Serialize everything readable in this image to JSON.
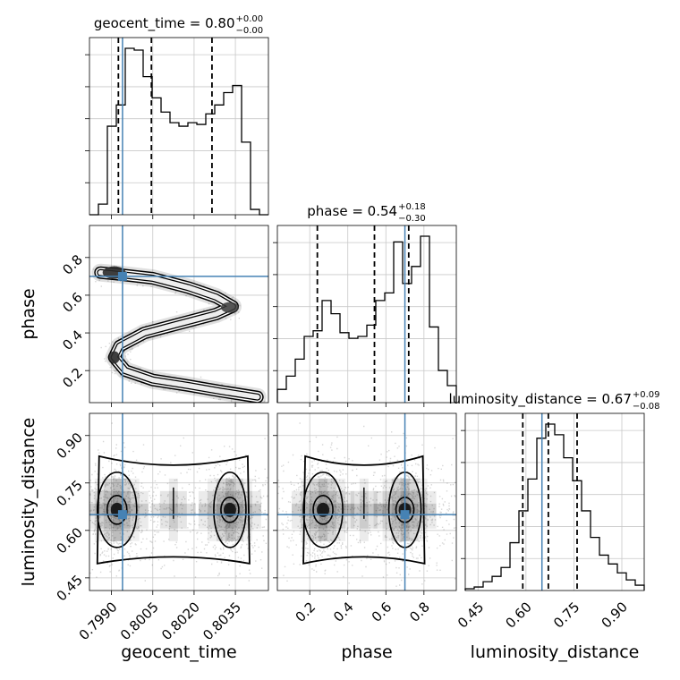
{
  "chart_data": {
    "type": "corner",
    "parameters": [
      {
        "name": "geocent_time",
        "axis_label": "geocent_time",
        "range": [
          0.7982,
          0.8047
        ],
        "ticks": [
          0.799,
          0.8005,
          0.802,
          0.8035
        ],
        "tick_labels": [
          "0.7990",
          "0.8005",
          "0.8020",
          "0.8035"
        ],
        "title_main": "geocent_time = 0.80",
        "title_sup": "+0.00",
        "title_sub": "−0.00",
        "injected": 0.7994,
        "quantiles": [
          0.79925,
          0.80045,
          0.80265
        ],
        "hist_edges_start": 0.7982,
        "hist_bin_width": 0.000325,
        "hist_counts": [
          0,
          0.06,
          0.5,
          0.62,
          0.94,
          0.93,
          0.78,
          0.66,
          0.58,
          0.52,
          0.5,
          0.52,
          0.51,
          0.57,
          0.62,
          0.69,
          0.73,
          0.41,
          0.03,
          0
        ]
      },
      {
        "name": "phase",
        "axis_label": "phase",
        "range": [
          0.03,
          0.97
        ],
        "ticks": [
          0.2,
          0.4,
          0.6,
          0.8
        ],
        "tick_labels": [
          "0.2",
          "0.4",
          "0.6",
          "0.8"
        ],
        "title_main": "phase = 0.54",
        "title_sup": "+0.18",
        "title_sub": "−0.30",
        "injected": 0.7,
        "quantiles": [
          0.24,
          0.54,
          0.72
        ],
        "hist_edges_start": 0.03,
        "hist_bin_width": 0.047,
        "hist_counts": [
          0.07,
          0.14,
          0.23,
          0.35,
          0.38,
          0.54,
          0.47,
          0.37,
          0.34,
          0.35,
          0.41,
          0.54,
          0.58,
          0.85,
          0.63,
          0.72,
          0.88,
          0.4,
          0.17,
          0.09
        ]
      },
      {
        "name": "luminosity_distance",
        "axis_label": "luminosity_distance",
        "range": [
          0.41,
          0.97
        ],
        "ticks": [
          0.45,
          0.6,
          0.75,
          0.9
        ],
        "tick_labels": [
          "0.45",
          "0.60",
          "0.75",
          "0.90"
        ],
        "title_main": "luminosity_distance = 0.67",
        "title_sup": "+0.09",
        "title_sub": "−0.08",
        "injected": 0.65,
        "quantiles": [
          0.59,
          0.67,
          0.76
        ],
        "hist_edges_start": 0.41,
        "hist_bin_width": 0.028,
        "hist_counts": [
          0.01,
          0.02,
          0.05,
          0.08,
          0.13,
          0.27,
          0.45,
          0.63,
          0.86,
          0.94,
          0.88,
          0.75,
          0.62,
          0.45,
          0.3,
          0.2,
          0.15,
          0.1,
          0.06,
          0.03
        ]
      }
    ],
    "injection_color": "#4682b4",
    "hist_color": "#000000",
    "quantile_line_style": "dashed",
    "grid": true,
    "panels_2d": [
      {
        "x": "geocent_time",
        "y": "phase",
        "samples": "S-shaped band: dense blobs at (0.7991, 0.72), (0.8033, 0.54), (0.7991, 0.27); tail towards (0.8043, 0.07)",
        "path_x": [
          0.7986,
          0.7993,
          0.8005,
          0.8018,
          0.8028,
          0.8034,
          0.8028,
          0.8015,
          0.8002,
          0.7993,
          0.7991,
          0.7995,
          0.8005,
          0.8018,
          0.803,
          0.8043
        ],
        "path_y": [
          0.72,
          0.71,
          0.69,
          0.64,
          0.59,
          0.54,
          0.5,
          0.45,
          0.4,
          0.33,
          0.27,
          0.2,
          0.15,
          0.12,
          0.09,
          0.06
        ]
      },
      {
        "x": "geocent_time",
        "y": "luminosity_distance",
        "samples": "bimodal in geocent_time, modes near 0.7992 and 0.8033, luminosity_distance centred near 0.66"
      },
      {
        "x": "phase",
        "y": "luminosity_distance",
        "samples": "bimodal in phase, modes near 0.27 and 0.7, luminosity_distance centred near 0.66"
      }
    ]
  }
}
